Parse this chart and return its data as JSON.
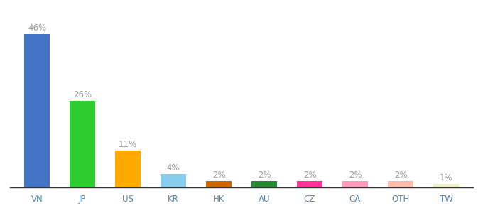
{
  "categories": [
    "VN",
    "JP",
    "US",
    "KR",
    "HK",
    "AU",
    "CZ",
    "CA",
    "OTH",
    "TW"
  ],
  "values": [
    46,
    26,
    11,
    4,
    2,
    2,
    2,
    2,
    2,
    1
  ],
  "bar_colors": [
    "#4472c4",
    "#2ecc2e",
    "#ffaa00",
    "#88ccee",
    "#cc6600",
    "#228833",
    "#ff3399",
    "#ff99bb",
    "#ffbbaa",
    "#eeeebb"
  ],
  "labels": [
    "46%",
    "26%",
    "11%",
    "4%",
    "2%",
    "2%",
    "2%",
    "2%",
    "2%",
    "1%"
  ],
  "ylim": [
    0,
    53
  ],
  "background_color": "#ffffff",
  "label_fontsize": 8.5,
  "tick_fontsize": 8.5,
  "label_color": "#999999",
  "tick_color": "#5588aa"
}
